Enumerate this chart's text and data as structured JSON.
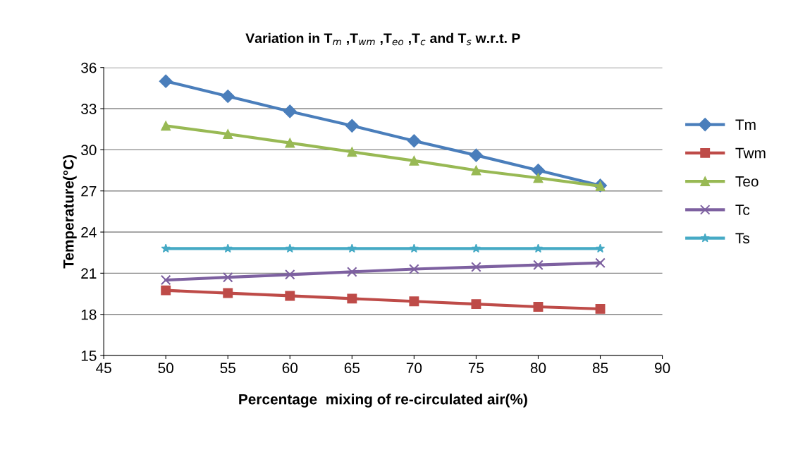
{
  "chart_data": {
    "type": "line",
    "title": "Variation in T$_{m}$ ,T$_{wm}$ ,T$_{eo}$ ,T$_{c}$ and T$_{s}$ w.r.t. P",
    "xlabel": "Percentage  mixing of re-circulated air(%)",
    "ylabel": "Temperature(°C)",
    "x": [
      50,
      55,
      60,
      65,
      70,
      75,
      80,
      85
    ],
    "series": [
      {
        "name": "Tm",
        "color": "#4a7ebb",
        "marker": "diamond",
        "values": [
          35.0,
          33.9,
          32.8,
          31.75,
          30.65,
          29.6,
          28.5,
          27.4
        ]
      },
      {
        "name": "Twm",
        "color": "#be4b48",
        "marker": "square",
        "values": [
          19.75,
          19.55,
          19.35,
          19.15,
          18.95,
          18.75,
          18.55,
          18.4
        ]
      },
      {
        "name": "Teo",
        "color": "#98b954",
        "marker": "triangle",
        "values": [
          31.75,
          31.15,
          30.5,
          29.85,
          29.2,
          28.5,
          27.95,
          27.35
        ]
      },
      {
        "name": "Tc",
        "color": "#7d60a0",
        "marker": "cross",
        "values": [
          20.5,
          20.7,
          20.9,
          21.1,
          21.3,
          21.45,
          21.6,
          21.75
        ]
      },
      {
        "name": "Ts",
        "color": "#46aac5",
        "marker": "star",
        "values": [
          22.8,
          22.8,
          22.8,
          22.8,
          22.8,
          22.8,
          22.8,
          22.8
        ]
      }
    ],
    "xlim": [
      45,
      90
    ],
    "xticks": [
      45,
      50,
      55,
      60,
      65,
      70,
      75,
      80,
      85,
      90
    ],
    "ylim": [
      15,
      36
    ],
    "yticks": [
      15,
      18,
      21,
      24,
      27,
      30,
      33,
      36
    ],
    "grid": "y",
    "legend": "right",
    "line_style": "solid"
  }
}
